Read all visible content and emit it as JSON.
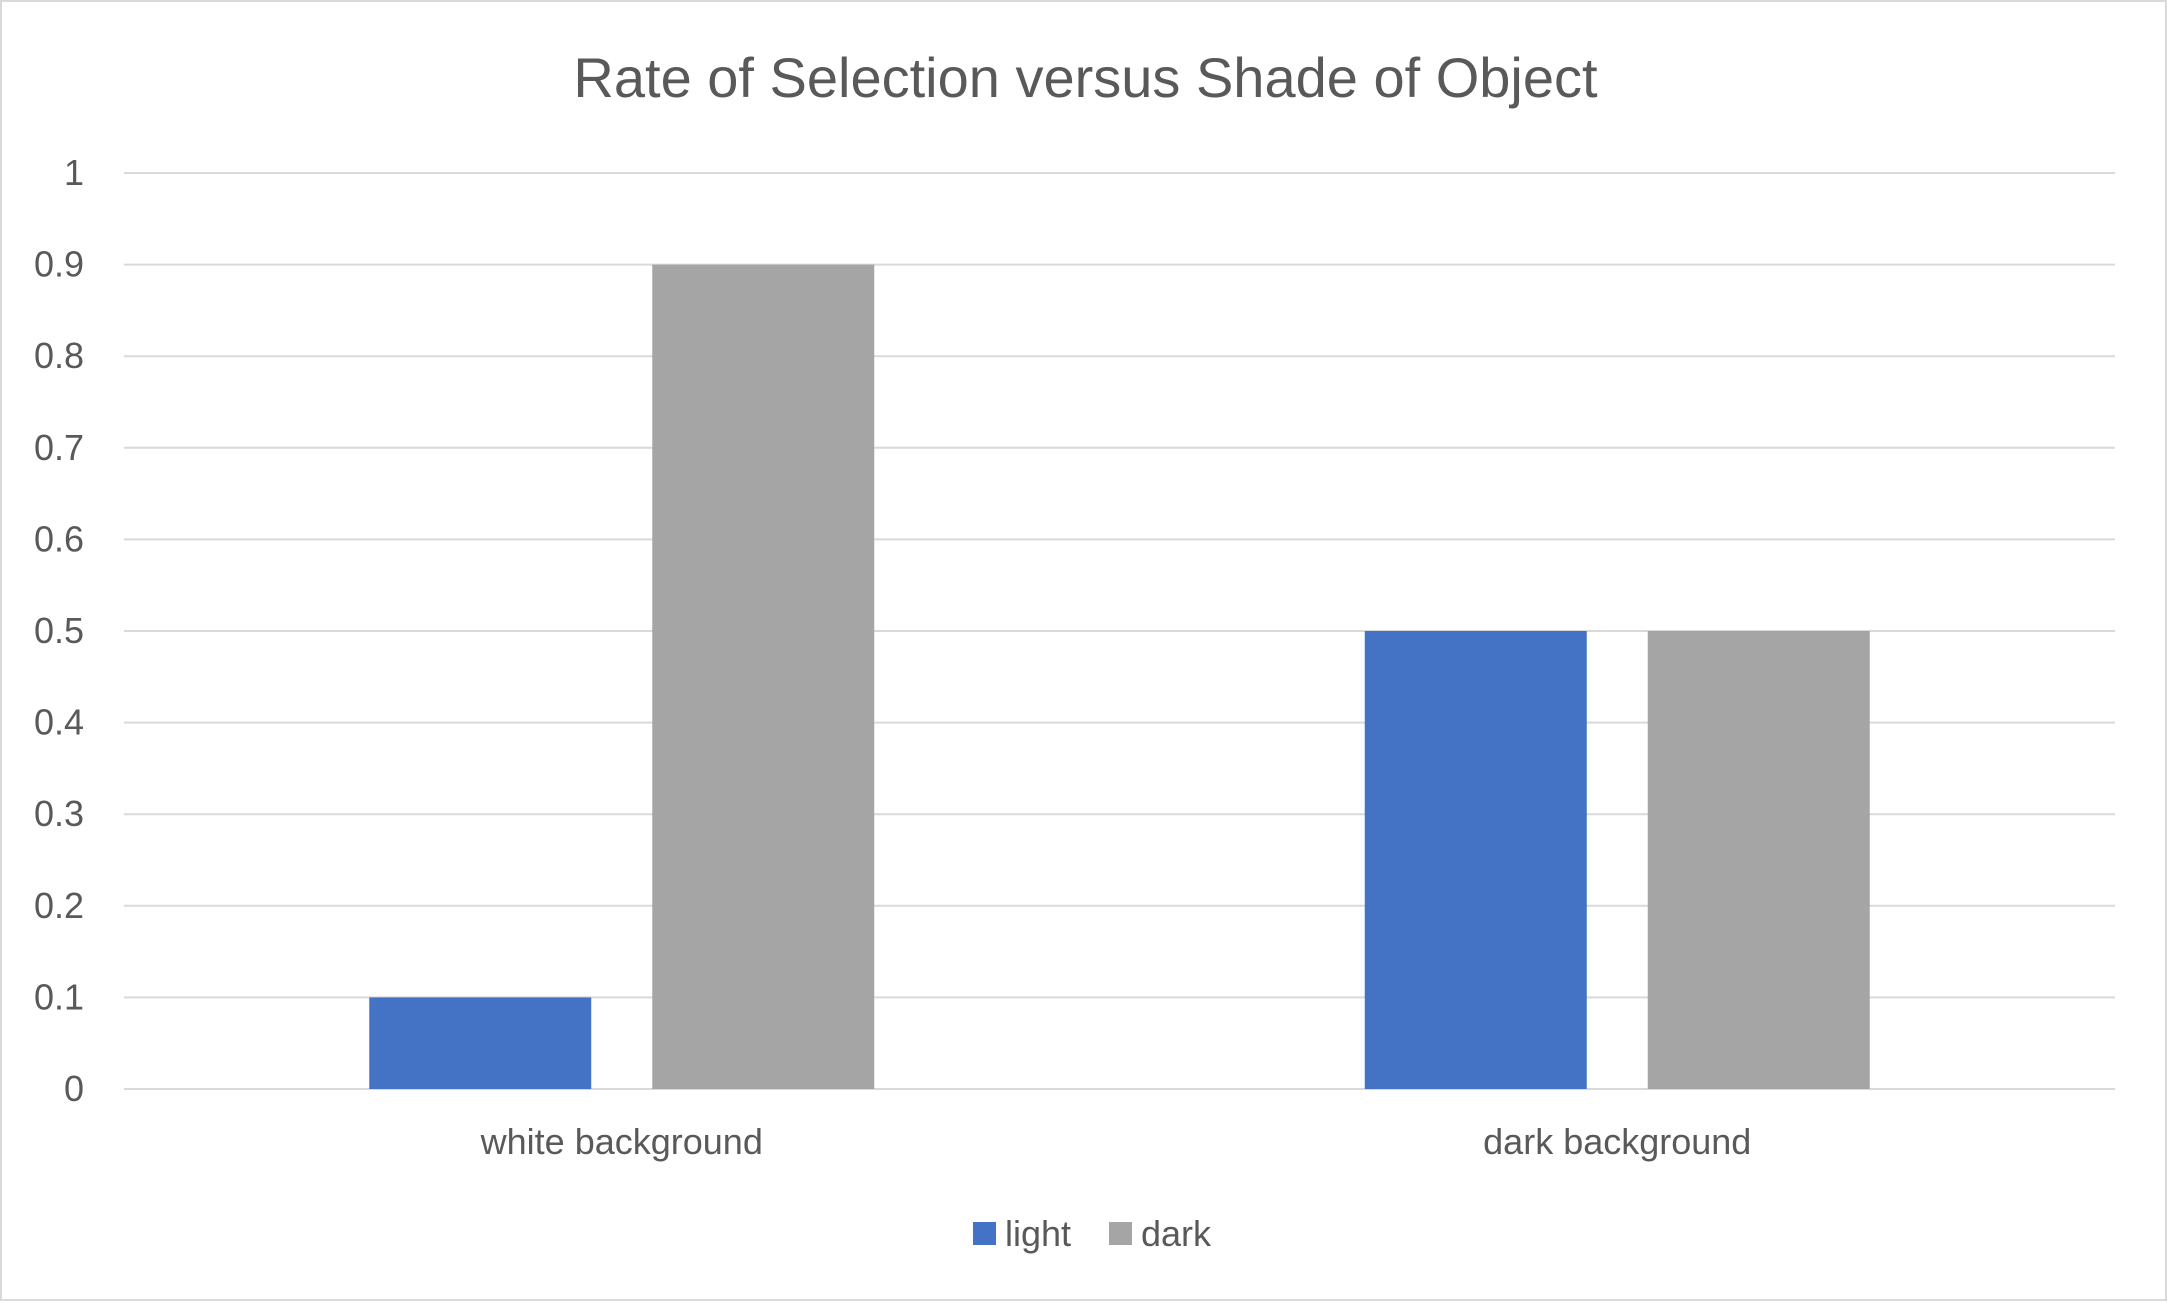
{
  "colors": {
    "light": "#4472c4",
    "dark": "#a5a5a5",
    "grid": "#d9d9d9",
    "text": "#595959"
  },
  "chart_data": {
    "type": "bar",
    "title": "Rate of Selection versus Shade of Object",
    "xlabel": "",
    "ylabel": "",
    "categories": [
      "white background",
      "dark background"
    ],
    "series": [
      {
        "name": "light",
        "values": [
          0.1,
          0.5
        ]
      },
      {
        "name": "dark",
        "values": [
          0.9,
          0.5
        ]
      }
    ],
    "ylim": [
      0,
      1
    ],
    "yticks": [
      "0",
      "0.1",
      "0.2",
      "0.3",
      "0.4",
      "0.5",
      "0.6",
      "0.7",
      "0.8",
      "0.9",
      "1"
    ],
    "grid": true,
    "legend_position": "bottom"
  }
}
